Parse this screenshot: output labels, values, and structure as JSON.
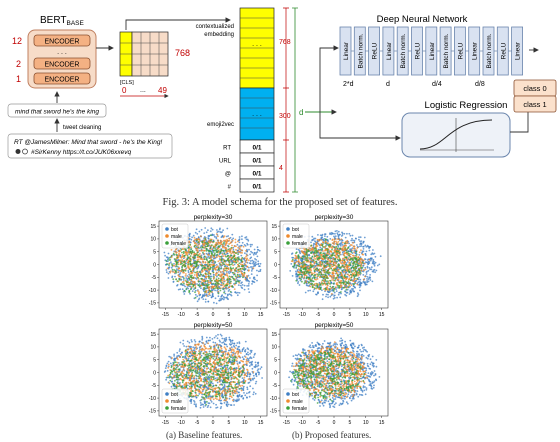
{
  "schema": {
    "bert": {
      "label": "BERT",
      "sub": "BASE",
      "encoder": "ENCODER",
      "layer_numbers": [
        "12",
        "2",
        "1"
      ],
      "dots": ". . ."
    },
    "cls_grid": {
      "label": "[CLS]",
      "dim": "768",
      "index_start": "0",
      "index_dots": "...",
      "index_end": "49"
    },
    "tweet_clean": "mind that sword he's the king",
    "tweet_cleaning_label": "tweet cleaning",
    "tweet_raw_line1": "RT @JamesMilner: Mind that sword - he's the King!",
    "tweet_raw_line2": "#SirKenny  https://t.co/JUK06xxevq",
    "vector": {
      "contextualized_label": "contextualized embedding",
      "contextualized_dim": "768",
      "emoji_label": "emoji2vec",
      "emoji_dim": "300",
      "dots": ". . .",
      "d_label": "d",
      "features": [
        {
          "name": "RT",
          "value": "0/1"
        },
        {
          "name": "URL",
          "value": "0/1"
        },
        {
          "name": "@",
          "value": "0/1"
        },
        {
          "name": "#",
          "value": "0/1"
        }
      ],
      "features_dim": "4"
    },
    "dnn": {
      "title": "Deep Neural Network",
      "layers": [
        "Linear",
        "Batch norm.",
        "ReLU",
        "Linear",
        "Batch norm.",
        "ReLU",
        "Linear",
        "Batch norm.",
        "ReLU",
        "Linear",
        "Batch norm.",
        "ReLU",
        "Linear"
      ],
      "sizes": [
        "2*d",
        "d",
        "d/4",
        "d/8",
        "2"
      ]
    },
    "logreg_title": "Logistic Regression",
    "classes": [
      "class 0",
      "class 1"
    ]
  },
  "fig3_caption": "Fig. 3: A model schema for the proposed set of features.",
  "chart_data": [
    {
      "type": "scatter",
      "title": "perplexity=30",
      "legend": [
        "bot",
        "male",
        "female"
      ],
      "legend_placement": "top-left",
      "xticks": [
        "-15",
        "-10",
        "-5",
        "0",
        "5",
        "10",
        "15"
      ],
      "yticks": [
        "15",
        "10",
        "5",
        "0",
        "-5",
        "-10",
        "-15"
      ],
      "xlim": [
        -17,
        17
      ],
      "ylim": [
        -17,
        17
      ],
      "series_colors": [
        "#3f7fc4",
        "#ef8a2c",
        "#3aa03a"
      ]
    },
    {
      "type": "scatter",
      "title": "perplexity=30",
      "legend": [
        "bot",
        "male",
        "female"
      ],
      "legend_placement": "top-left",
      "xticks": [
        "-15",
        "-10",
        "-5",
        "0",
        "5",
        "10",
        "15"
      ],
      "yticks": [
        "15",
        "10",
        "5",
        "0",
        "-5",
        "-10",
        "-15"
      ],
      "xlim": [
        -17,
        17
      ],
      "ylim": [
        -17,
        17
      ],
      "series_colors": [
        "#3f7fc4",
        "#ef8a2c",
        "#3aa03a"
      ]
    },
    {
      "type": "scatter",
      "title": "perplexity=50",
      "legend": [
        "bot",
        "male",
        "female"
      ],
      "legend_placement": "bottom-left",
      "xticks": [
        "-15",
        "-10",
        "-5",
        "0",
        "5",
        "10",
        "15"
      ],
      "yticks": [
        "15",
        "10",
        "5",
        "0",
        "-5",
        "-10",
        "-15"
      ],
      "xlim": [
        -17,
        17
      ],
      "ylim": [
        -17,
        17
      ],
      "series_colors": [
        "#3f7fc4",
        "#ef8a2c",
        "#3aa03a"
      ]
    },
    {
      "type": "scatter",
      "title": "perplexity=50",
      "legend": [
        "bot",
        "male",
        "female"
      ],
      "legend_placement": "bottom-left",
      "xticks": [
        "-15",
        "-10",
        "-5",
        "0",
        "5",
        "10",
        "15"
      ],
      "yticks": [
        "15",
        "10",
        "5",
        "0",
        "-5",
        "-10",
        "-15"
      ],
      "xlim": [
        -17,
        17
      ],
      "ylim": [
        -17,
        17
      ],
      "series_colors": [
        "#3f7fc4",
        "#ef8a2c",
        "#3aa03a"
      ]
    }
  ],
  "subcaptions": [
    "(a) Baseline features.",
    "(b) Proposed features."
  ]
}
